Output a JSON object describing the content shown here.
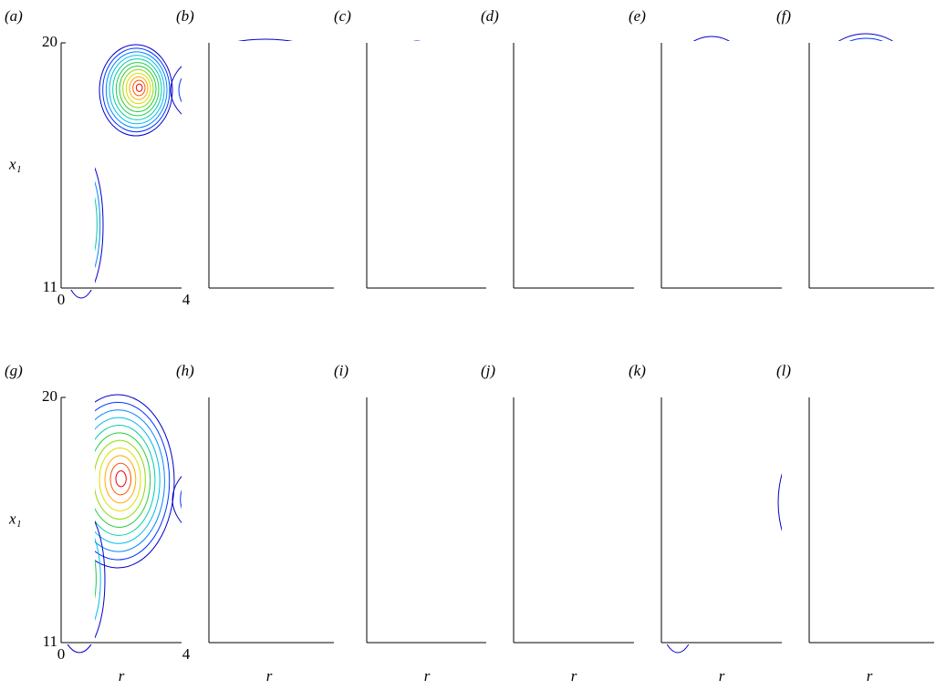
{
  "chart_data": [
    {
      "type": "contour",
      "label": "(a)",
      "xlim": [
        0,
        4
      ],
      "ylim": [
        11,
        20
      ],
      "xticks": [
        0,
        4
      ],
      "yticks": [
        11,
        20
      ],
      "ylabel": "x₁"
    },
    {
      "type": "contour",
      "label": "(b)",
      "xlim": [
        0,
        4
      ],
      "ylim": [
        11,
        20
      ]
    },
    {
      "type": "contour",
      "label": "(c)",
      "xlim": [
        0,
        4
      ],
      "ylim": [
        11,
        20
      ]
    },
    {
      "type": "contour",
      "label": "(d)",
      "xlim": [
        0,
        4
      ],
      "ylim": [
        11,
        20
      ]
    },
    {
      "type": "contour",
      "label": "(e)",
      "xlim": [
        0,
        4
      ],
      "ylim": [
        11,
        20
      ]
    },
    {
      "type": "contour",
      "label": "(f)",
      "xlim": [
        0,
        4
      ],
      "ylim": [
        11,
        20
      ]
    },
    {
      "type": "contour",
      "label": "(g)",
      "xlim": [
        0,
        4
      ],
      "ylim": [
        11,
        20
      ],
      "xticks": [
        0,
        4
      ],
      "yticks": [
        11,
        20
      ],
      "ylabel": "x₁",
      "xlabel": "r"
    },
    {
      "type": "contour",
      "label": "(h)",
      "xlim": [
        0,
        4
      ],
      "ylim": [
        11,
        20
      ],
      "xlabel": "r"
    },
    {
      "type": "contour",
      "label": "(i)",
      "xlim": [
        0,
        4
      ],
      "ylim": [
        11,
        20
      ],
      "xlabel": "r"
    },
    {
      "type": "contour",
      "label": "(j)",
      "xlim": [
        0,
        4
      ],
      "ylim": [
        11,
        20
      ],
      "xlabel": "r"
    },
    {
      "type": "contour",
      "label": "(k)",
      "xlim": [
        0,
        4
      ],
      "ylim": [
        11,
        20
      ],
      "xlabel": "r"
    },
    {
      "type": "contour",
      "label": "(l)",
      "xlim": [
        0,
        4
      ],
      "ylim": [
        11,
        20
      ],
      "xlabel": "r"
    }
  ]
}
